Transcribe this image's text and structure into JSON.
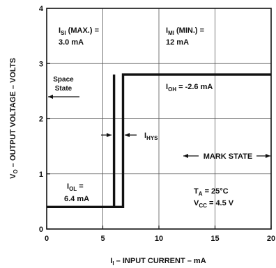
{
  "chart_data": {
    "type": "line",
    "xlabel": {
      "main": "I",
      "sub": "I",
      "rest": " – INPUT CURRENT – mA"
    },
    "ylabel": {
      "main": "V",
      "sub": "O",
      "rest": " – OUTPUT VOLTAGE – VOLTS"
    },
    "xlim": [
      0,
      20
    ],
    "ylim": [
      0,
      4
    ],
    "x_ticks": [
      "0",
      "5",
      "10",
      "15",
      "20"
    ],
    "y_ticks": [
      "0",
      "1",
      "2",
      "3",
      "4"
    ],
    "grid": true,
    "series": [
      {
        "points": [
          [
            0,
            0.4
          ],
          [
            6.8,
            0.4
          ],
          [
            6.8,
            2.8
          ],
          [
            20,
            2.8
          ]
        ]
      },
      {
        "points": [
          [
            6.0,
            0.4
          ],
          [
            6.0,
            2.8
          ]
        ]
      }
    ],
    "annotations": {
      "isi": {
        "main": "I",
        "sub": "SI",
        "rest": " (MAX.) =",
        "value": "3.0 mA"
      },
      "imi": {
        "main": "I",
        "sub": "MI",
        "rest": " (MIN.) =",
        "value": "12 mA"
      },
      "space_state": {
        "line1": "Space",
        "line2": "State"
      },
      "ioh": {
        "main": "I",
        "sub": "OH",
        "rest": " = -2.6 mA"
      },
      "ihys": {
        "main": "I",
        "sub": "HYS"
      },
      "mark_state": "MARK STATE",
      "iol": {
        "main": "I",
        "sub": "OL",
        "rest": " =",
        "value": "6.4 mA"
      },
      "ta": {
        "main": "T",
        "sub": "A",
        "rest": " = 25°C"
      },
      "vcc": {
        "main": "V",
        "sub": "CC",
        "rest": " = 4.5 V"
      }
    }
  }
}
